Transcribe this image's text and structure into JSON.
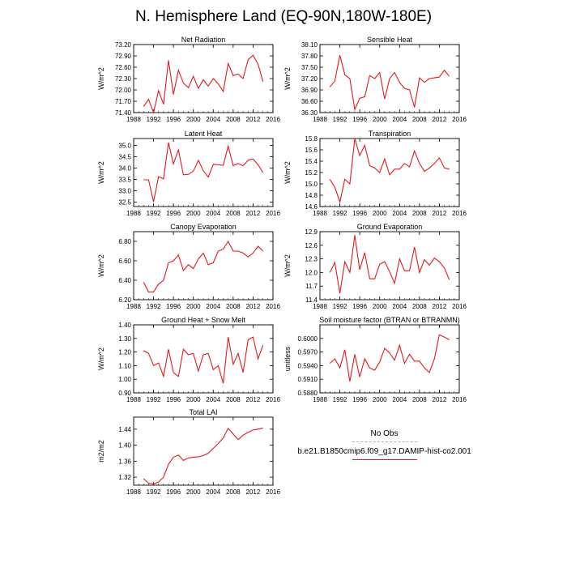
{
  "title": "N. Hemisphere Land (EQ-90N,180W-180E)",
  "legend": {
    "obs_label": "No Obs",
    "obs_color": "#aab0cc",
    "model_label": "b.e21.B1850cmip6.f09_g17.DAMIP-hist-co2.001",
    "model_color": "#e41a1c"
  },
  "chart_data": [
    {
      "type": "line",
      "title": "Net Radiation",
      "xlabel": "",
      "ylabel": "W/m^2",
      "xlim": [
        1988,
        2016
      ],
      "ylim": [
        71.4,
        73.2
      ],
      "xticks": [
        1988,
        1992,
        1996,
        2000,
        2004,
        2008,
        2012,
        2016
      ],
      "yticks": [
        "71.40",
        "71.70",
        "72.00",
        "72.30",
        "72.60",
        "72.90",
        "73.20"
      ],
      "x": [
        1990,
        1991,
        1992,
        1993,
        1994,
        1995,
        1996,
        1997,
        1998,
        1999,
        2000,
        2001,
        2002,
        2003,
        2004,
        2005,
        2006,
        2007,
        2008,
        2009,
        2010,
        2011,
        2012,
        2013,
        2014
      ],
      "values": [
        71.56,
        71.75,
        71.4,
        71.98,
        71.62,
        72.78,
        71.88,
        72.52,
        72.18,
        72.06,
        72.36,
        72.04,
        72.27,
        72.1,
        72.3,
        72.16,
        71.96,
        72.7,
        72.38,
        72.42,
        72.3,
        72.8,
        72.92,
        72.68,
        72.22
      ]
    },
    {
      "type": "line",
      "title": "Sensible Heat",
      "xlabel": "",
      "ylabel": "W/m^2",
      "xlim": [
        1988,
        2016
      ],
      "ylim": [
        36.3,
        38.1
      ],
      "xticks": [
        1988,
        1992,
        1996,
        2000,
        2004,
        2008,
        2012,
        2016
      ],
      "yticks": [
        "36.30",
        "36.60",
        "36.90",
        "37.20",
        "37.50",
        "37.80",
        "38.10"
      ],
      "x": [
        1990,
        1991,
        1992,
        1993,
        1994,
        1995,
        1996,
        1997,
        1998,
        1999,
        2000,
        2001,
        2002,
        2003,
        2004,
        2005,
        2006,
        2007,
        2008,
        2009,
        2010,
        2011,
        2012,
        2013,
        2014
      ],
      "values": [
        36.98,
        37.14,
        37.82,
        37.3,
        37.2,
        36.38,
        36.68,
        36.72,
        37.28,
        37.2,
        37.36,
        36.66,
        37.2,
        37.36,
        37.1,
        36.94,
        36.9,
        36.44,
        37.22,
        37.1,
        37.2,
        37.22,
        37.24,
        37.42,
        37.26
      ]
    },
    {
      "type": "line",
      "title": "Latent Heat",
      "xlabel": "",
      "ylabel": "W/m^2",
      "xlim": [
        1988,
        2016
      ],
      "ylim": [
        32.3,
        35.3
      ],
      "xticks": [
        1988,
        1992,
        1996,
        2000,
        2004,
        2008,
        2012,
        2016
      ],
      "yticks": [
        "32.5",
        "33.0",
        "33.5",
        "34.0",
        "34.5",
        "35.0"
      ],
      "x": [
        1990,
        1991,
        1992,
        1993,
        1994,
        1995,
        1996,
        1997,
        1998,
        1999,
        2000,
        2001,
        2002,
        2003,
        2004,
        2005,
        2006,
        2007,
        2008,
        2009,
        2010,
        2011,
        2012,
        2013,
        2014
      ],
      "values": [
        33.48,
        33.48,
        32.5,
        33.62,
        33.52,
        35.12,
        34.18,
        34.8,
        33.7,
        33.72,
        33.86,
        34.34,
        33.88,
        33.6,
        34.16,
        34.14,
        34.12,
        34.96,
        34.1,
        34.2,
        34.1,
        34.34,
        34.4,
        34.14,
        33.8
      ]
    },
    {
      "type": "line",
      "title": "Transpiration",
      "xlabel": "",
      "ylabel": "W/m^2",
      "xlim": [
        1988,
        2016
      ],
      "ylim": [
        14.6,
        15.8
      ],
      "xticks": [
        1988,
        1992,
        1996,
        2000,
        2004,
        2008,
        2012,
        2016
      ],
      "yticks": [
        "14.6",
        "14.8",
        "15.0",
        "15.2",
        "15.4",
        "15.6",
        "15.8"
      ],
      "x": [
        1990,
        1991,
        1992,
        1993,
        1994,
        1995,
        1996,
        1997,
        1998,
        1999,
        2000,
        2001,
        2002,
        2003,
        2004,
        2005,
        2006,
        2007,
        2008,
        2009,
        2010,
        2011,
        2012,
        2013,
        2014
      ],
      "values": [
        15.08,
        14.94,
        14.68,
        15.08,
        15.0,
        15.8,
        15.5,
        15.68,
        15.32,
        15.28,
        15.2,
        15.44,
        15.16,
        15.26,
        15.26,
        15.36,
        15.3,
        15.58,
        15.36,
        15.22,
        15.28,
        15.36,
        15.46,
        15.28,
        15.26
      ]
    },
    {
      "type": "line",
      "title": "Canopy Evaporation",
      "xlabel": "",
      "ylabel": "W/m^2",
      "xlim": [
        1988,
        2016
      ],
      "ylim": [
        6.2,
        6.9
      ],
      "xticks": [
        1988,
        1992,
        1996,
        2000,
        2004,
        2008,
        2012,
        2016
      ],
      "yticks": [
        "6.20",
        "6.40",
        "6.60",
        "6.80"
      ],
      "x": [
        1990,
        1991,
        1992,
        1993,
        1994,
        1995,
        1996,
        1997,
        1998,
        1999,
        2000,
        2001,
        2002,
        2003,
        2004,
        2005,
        2006,
        2007,
        2008,
        2009,
        2010,
        2011,
        2012,
        2013,
        2014
      ],
      "values": [
        6.38,
        6.28,
        6.28,
        6.36,
        6.4,
        6.58,
        6.6,
        6.66,
        6.5,
        6.56,
        6.52,
        6.62,
        6.68,
        6.56,
        6.58,
        6.7,
        6.72,
        6.8,
        6.7,
        6.7,
        6.68,
        6.64,
        6.68,
        6.75,
        6.7
      ]
    },
    {
      "type": "line",
      "title": "Ground Evaporation",
      "xlabel": "",
      "ylabel": "W/m^2",
      "xlim": [
        1988,
        2016
      ],
      "ylim": [
        11.4,
        12.9
      ],
      "xticks": [
        1988,
        1992,
        1996,
        2000,
        2004,
        2008,
        2012,
        2016
      ],
      "yticks": [
        "11.4",
        "11.7",
        "12.0",
        "12.3",
        "12.6",
        "12.9"
      ],
      "x": [
        1990,
        1991,
        1992,
        1993,
        1994,
        1995,
        1996,
        1997,
        1998,
        1999,
        2000,
        2001,
        2002,
        2003,
        2004,
        2005,
        2006,
        2007,
        2008,
        2009,
        2010,
        2011,
        2012,
        2013,
        2014
      ],
      "values": [
        12.0,
        12.22,
        11.54,
        12.24,
        12.0,
        12.82,
        12.06,
        12.44,
        11.86,
        11.86,
        12.18,
        12.24,
        12.02,
        11.76,
        12.3,
        12.04,
        12.04,
        12.56,
        12.0,
        12.28,
        12.16,
        12.32,
        12.24,
        12.1,
        11.84
      ]
    },
    {
      "type": "line",
      "title": "Ground Heat + Snow Melt",
      "xlabel": "",
      "ylabel": "W/m^2",
      "xlim": [
        1988,
        2016
      ],
      "ylim": [
        0.9,
        1.4
      ],
      "xticks": [
        1988,
        1992,
        1996,
        2000,
        2004,
        2008,
        2012,
        2016
      ],
      "yticks": [
        "0.90",
        "1.00",
        "1.10",
        "1.20",
        "1.30",
        "1.40"
      ],
      "x": [
        1990,
        1991,
        1992,
        1993,
        1994,
        1995,
        1996,
        1997,
        1998,
        1999,
        2000,
        2001,
        2002,
        2003,
        2004,
        2005,
        2006,
        2007,
        2008,
        2009,
        2010,
        2011,
        2012,
        2013,
        2014
      ],
      "values": [
        1.21,
        1.19,
        1.1,
        1.12,
        1.02,
        1.22,
        1.05,
        1.02,
        1.22,
        1.18,
        1.19,
        1.06,
        1.18,
        1.19,
        1.07,
        1.1,
        0.97,
        1.31,
        1.11,
        1.19,
        1.05,
        1.29,
        1.31,
        1.15,
        1.25
      ]
    },
    {
      "type": "line",
      "title": "Soil moisture factor (BTRAN or BTRANMN)",
      "xlabel": "",
      "ylabel": "unitless",
      "xlim": [
        1988,
        2016
      ],
      "ylim": [
        0.588,
        0.603
      ],
      "xticks": [
        1988,
        1992,
        1996,
        2000,
        2004,
        2008,
        2012,
        2016
      ],
      "yticks": [
        "0.5880",
        "0.5910",
        "0.5940",
        "0.5970",
        "0.6000"
      ],
      "x": [
        1990,
        1991,
        1992,
        1993,
        1994,
        1995,
        1996,
        1997,
        1998,
        1999,
        2000,
        2001,
        2002,
        2003,
        2004,
        2005,
        2006,
        2007,
        2008,
        2009,
        2010,
        2011,
        2012,
        2013,
        2014
      ],
      "values": [
        0.5945,
        0.5955,
        0.5935,
        0.5975,
        0.5905,
        0.5965,
        0.5915,
        0.5955,
        0.5935,
        0.593,
        0.5948,
        0.5978,
        0.5968,
        0.5952,
        0.5985,
        0.5945,
        0.5965,
        0.595,
        0.595,
        0.5935,
        0.5925,
        0.5955,
        0.6008,
        0.6003,
        0.5997
      ]
    },
    {
      "type": "line",
      "title": "Total LAI",
      "xlabel": "",
      "ylabel": "m2/m2",
      "xlim": [
        1988,
        2016
      ],
      "ylim": [
        1.3,
        1.47
      ],
      "xticks": [
        1988,
        1992,
        1996,
        2000,
        2004,
        2008,
        2012,
        2016
      ],
      "yticks": [
        "1.32",
        "1.36",
        "1.40",
        "1.44"
      ],
      "x": [
        1990,
        1991,
        1992,
        1993,
        1994,
        1995,
        1996,
        1997,
        1998,
        1999,
        2000,
        2001,
        2002,
        2003,
        2004,
        2005,
        2006,
        2007,
        2008,
        2009,
        2010,
        2011,
        2012,
        2013,
        2014
      ],
      "values": [
        1.316,
        1.305,
        1.303,
        1.308,
        1.32,
        1.352,
        1.37,
        1.375,
        1.362,
        1.368,
        1.37,
        1.371,
        1.374,
        1.38,
        1.392,
        1.404,
        1.418,
        1.442,
        1.428,
        1.414,
        1.425,
        1.432,
        1.438,
        1.44,
        1.443
      ]
    }
  ]
}
